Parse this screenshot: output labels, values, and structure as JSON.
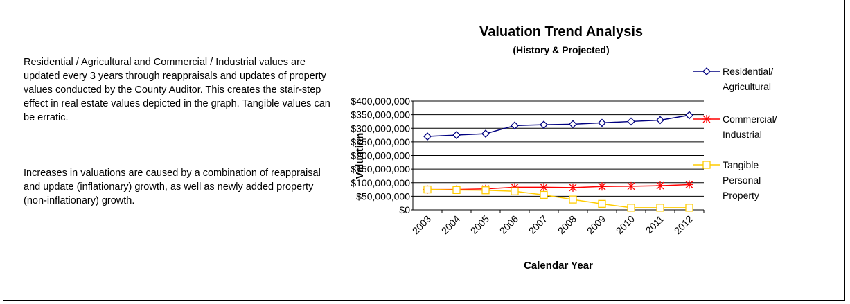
{
  "paragraphs": [
    "Residential / Agricultural and Commercial / Industrial values are updated every 3 years through reappraisals and updates of property values conducted by the County Auditor.  This creates the stair-step effect in real estate values depicted in the graph.  Tangible values can be erratic.",
    "Increases in valuations are caused by a combination of reappraisal and update (inflationary) growth, as well as newly added property (non-inflationary) growth."
  ],
  "chart_data": {
    "type": "line",
    "title": "Valuation Trend Analysis",
    "subtitle": "(History & Projected)",
    "y_label": "Valuation",
    "x_label": "Calendar Year",
    "categories": [
      "2003",
      "2004",
      "2005",
      "2006",
      "2007",
      "2008",
      "2009",
      "2010",
      "2011",
      "2012"
    ],
    "series": [
      {
        "name": "Residential/ Agricultural",
        "color": "#000080",
        "marker": "diamond",
        "values": [
          270000000,
          275000000,
          280000000,
          310000000,
          313000000,
          315000000,
          320000000,
          325000000,
          330000000,
          348000000
        ]
      },
      {
        "name": "Commercial/ Industrial",
        "color": "#ff0000",
        "marker": "star",
        "values": [
          75000000,
          75000000,
          77000000,
          83000000,
          83000000,
          82000000,
          86000000,
          87000000,
          89000000,
          93000000
        ]
      },
      {
        "name": "Tangible Personal Property",
        "color": "#ffcc00",
        "marker": "square",
        "values": [
          75000000,
          73000000,
          72000000,
          68000000,
          55000000,
          38000000,
          22000000,
          8000000,
          8000000,
          8000000
        ]
      }
    ],
    "ylim": [
      0,
      400000000
    ],
    "yticks": [
      {
        "value": 0,
        "label": "$0"
      },
      {
        "value": 50000000,
        "label": "$50,000,000"
      },
      {
        "value": 100000000,
        "label": "$100,000,000"
      },
      {
        "value": 150000000,
        "label": "$150,000,000"
      },
      {
        "value": 200000000,
        "label": "$200,000,000"
      },
      {
        "value": 250000000,
        "label": "$250,000,000"
      },
      {
        "value": 300000000,
        "label": "$300,000,000"
      },
      {
        "value": 350000000,
        "label": "$350,000,000"
      },
      {
        "value": 400000000,
        "label": "$400,000,000"
      }
    ],
    "grid": true,
    "legend": "right"
  }
}
